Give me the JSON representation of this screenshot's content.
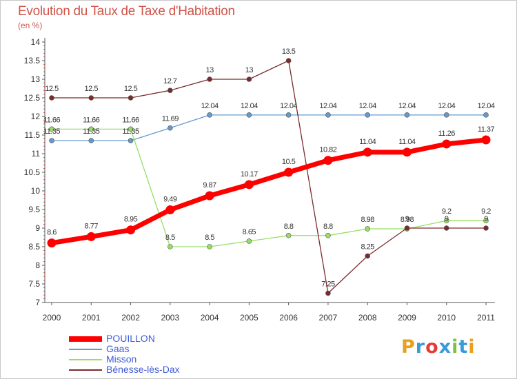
{
  "chart_data": {
    "type": "line",
    "title": "Evolution du Taux de Taxe d'Habitation",
    "subtitle": "(en %)",
    "x": [
      "2000",
      "2001",
      "2002",
      "2003",
      "2004",
      "2005",
      "2006",
      "2007",
      "2008",
      "2009",
      "2010",
      "2011"
    ],
    "y_ticks": [
      "7",
      "7.5",
      "8",
      "8.5",
      "9",
      "9.5",
      "10",
      "10.5",
      "11",
      "11.5",
      "12",
      "12.5",
      "13",
      "13.5",
      "14"
    ],
    "ylim": [
      7,
      14
    ],
    "grid": false,
    "legend": "bottom-left",
    "series": [
      {
        "name": "POUILLON",
        "color": "#ff0000",
        "values": [
          8.6,
          8.77,
          8.95,
          9.49,
          9.87,
          10.17,
          10.5,
          10.82,
          11.04,
          11.04,
          11.26,
          11.37
        ],
        "labels": [
          "8.6",
          "8.77",
          "8.95",
          "9.49",
          "9.87",
          "10.17",
          "10.5",
          "10.82",
          "11.04",
          "11.04",
          "11.26",
          "11.37"
        ]
      },
      {
        "name": "Gaas",
        "color": "#6699cc",
        "values": [
          11.35,
          11.35,
          11.35,
          11.69,
          12.04,
          12.04,
          12.04,
          12.04,
          12.04,
          12.04,
          12.04,
          12.04
        ],
        "labels": [
          "11.35",
          "11.35",
          "11.35",
          "11.69",
          "12.04",
          "12.04",
          "12.04",
          "12.04",
          "12.04",
          "12.04",
          "12.04",
          "12.04"
        ]
      },
      {
        "name": "Misson",
        "color": "#99dd66",
        "values": [
          11.66,
          11.66,
          11.66,
          8.5,
          8.5,
          8.65,
          8.8,
          8.8,
          8.98,
          8.98,
          9.2,
          9.2
        ],
        "labels": [
          "11.66",
          "11.66",
          "11.66",
          "8.5",
          "8.5",
          "8.65",
          "8.8",
          "8.8",
          "8.98",
          "8.98",
          "9.2",
          "9.2"
        ]
      },
      {
        "name": "Bénesse-lès-Dax",
        "color": "#7a2b2b",
        "values": [
          12.5,
          12.5,
          12.5,
          12.7,
          13,
          13,
          13.5,
          7.25,
          8.25,
          9,
          9,
          9
        ],
        "labels": [
          "12.5",
          "12.5",
          "12.5",
          "12.7",
          "13",
          "13",
          "13.5",
          "7.25",
          "8.25",
          "9",
          "9",
          "9"
        ]
      }
    ]
  },
  "logo": {
    "letters": [
      "P",
      "r",
      "o",
      "x",
      "i",
      "t",
      "i"
    ],
    "colors": [
      "#e8a020",
      "#3a9ad9",
      "#e83a3a",
      "#3a9ad9",
      "#7cc242",
      "#3a9ad9",
      "#e8a020"
    ]
  }
}
